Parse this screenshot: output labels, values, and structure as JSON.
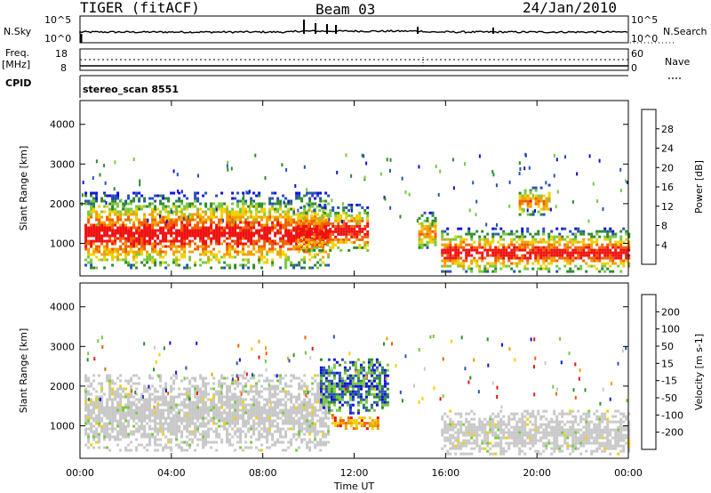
{
  "header": {
    "radar": "TIGER (fitACF)",
    "beam": "Beam 03",
    "date": "24/Jan/2010"
  },
  "panels": {
    "nsky_label": "N.Sky",
    "nsky_ticks": [
      "10^5",
      "10^0"
    ],
    "nsearch_label": "N.Search",
    "nsearch_ticks": [
      "10^5",
      "10^0"
    ],
    "freq_label": "Freq.",
    "freq_unit": "[MHz]",
    "freq_ticks": [
      "18",
      "8"
    ],
    "nave_label": "Nave",
    "nave_ticks": [
      "60",
      "0"
    ],
    "cpid_label": "CPID",
    "cpid_value": "stereo_scan 8551"
  },
  "colors": {
    "power": [
      "#1010e0",
      "#2850b8",
      "#2e8a2e",
      "#78c840",
      "#f0d000",
      "#f0a000",
      "#f06000",
      "#f01010"
    ],
    "velocity": [
      "#1010e0",
      "#2850b8",
      "#2e8a2e",
      "#78c840",
      "#c8c8c8",
      "#f0d000",
      "#f0a000",
      "#f06000",
      "#f01010"
    ],
    "ground_scatter": "#c8c8c8"
  },
  "chart_data": [
    {
      "type": "heatmap",
      "title": "Power",
      "xlabel": "Time UT",
      "ylabel": "Slant Range [km]",
      "colorbar_label": "Power [dB]",
      "x_ticks": [
        "00:00",
        "04:00",
        "08:00",
        "12:00",
        "16:00",
        "20:00",
        "00:00"
      ],
      "y_ticks": [
        1000,
        2000,
        3000,
        4000
      ],
      "xlim_hours": [
        0,
        24
      ],
      "ylim": [
        180,
        4600
      ],
      "colorbar_ticks": [
        "28",
        "24",
        "20",
        "16",
        "12",
        "8",
        "4"
      ],
      "scatter_regions": [
        {
          "start_hour": 0.2,
          "end_hour": 10.9,
          "range_low": 400,
          "range_high": 2300,
          "level": "high"
        },
        {
          "start_hour": 9.5,
          "end_hour": 12.6,
          "range_low": 800,
          "range_high": 2000,
          "level": "high"
        },
        {
          "start_hour": 14.8,
          "end_hour": 15.6,
          "range_low": 900,
          "range_high": 1800,
          "level": "medium"
        },
        {
          "start_hour": 15.8,
          "end_hour": 24.0,
          "range_low": 300,
          "range_high": 1400,
          "level": "high"
        },
        {
          "start_hour": 19.2,
          "end_hour": 20.6,
          "range_low": 1700,
          "range_high": 2500,
          "level": "medium"
        }
      ]
    },
    {
      "type": "heatmap",
      "title": "Velocity",
      "xlabel": "Time UT",
      "ylabel": "Slant Range [km]",
      "colorbar_label": "Velocity [m s-1]",
      "x_ticks": [
        "00:00",
        "04:00",
        "08:00",
        "12:00",
        "16:00",
        "20:00",
        "00:00"
      ],
      "y_ticks": [
        1000,
        2000,
        3000,
        4000
      ],
      "xlim_hours": [
        0,
        24
      ],
      "ylim": [
        180,
        4600
      ],
      "colorbar_ticks": [
        "200",
        "100",
        "50",
        "15",
        "-15",
        "-50",
        "-100",
        "-200"
      ],
      "scatter_regions": [
        {
          "start_hour": 0.2,
          "end_hour": 10.9,
          "range_low": 400,
          "range_high": 2300,
          "level": "ground"
        },
        {
          "start_hour": 10.5,
          "end_hour": 13.5,
          "range_low": 1300,
          "range_high": 2700,
          "level": "positive"
        },
        {
          "start_hour": 11.0,
          "end_hour": 13.0,
          "range_low": 900,
          "range_high": 1300,
          "level": "negative"
        },
        {
          "start_hour": 15.8,
          "end_hour": 24.0,
          "range_low": 300,
          "range_high": 1400,
          "level": "ground"
        }
      ]
    }
  ]
}
